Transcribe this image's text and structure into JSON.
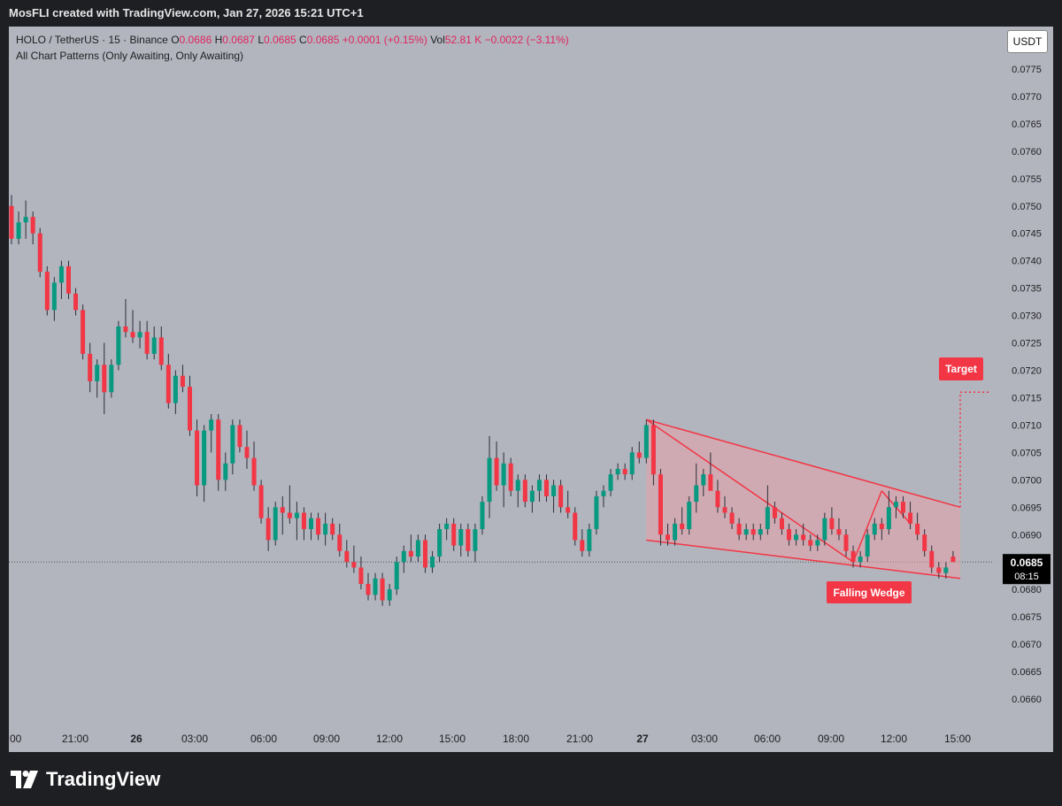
{
  "header": {
    "text": "MosFLI created with TradingView.com, Jan 27, 2026 15:21 UTC+1"
  },
  "legend": {
    "symbol": "HOLO / TetherUS · 15 · Binance",
    "o_label": "O",
    "o": "0.0686",
    "h_label": "H",
    "h": "0.0687",
    "l_label": "L",
    "l": "0.0685",
    "c_label": "C",
    "c": "0.0685",
    "change": "+0.0001 (+0.15%)",
    "vol_label": "Vol",
    "vol": "52.81 K",
    "vol_change": "−0.0022 (−3.11%)",
    "indicator": "All Chart Patterns (Only Awaiting, Only Awaiting)"
  },
  "currency_button": "USDT",
  "price_tag": {
    "value": "0.0685",
    "countdown": "08:15"
  },
  "annotations": {
    "target": "Target",
    "pattern": "Falling Wedge"
  },
  "footer": {
    "brand": "TradingView"
  },
  "colors": {
    "up": "#089981",
    "down": "#f23645",
    "background": "#b2b5be",
    "wedge_line": "#f23645",
    "wedge_fill": "#e8a0a8"
  },
  "chart_data": {
    "type": "candlestick",
    "symbol": "HOLO / TetherUS",
    "interval": "15",
    "exchange": "Binance",
    "y_axis": {
      "ticks": [
        "0.0775",
        "0.0770",
        "0.0765",
        "0.0760",
        "0.0755",
        "0.0750",
        "0.0745",
        "0.0740",
        "0.0735",
        "0.0730",
        "0.0725",
        "0.0720",
        "0.0715",
        "0.0710",
        "0.0705",
        "0.0700",
        "0.0695",
        "0.0690",
        "0.0685",
        "0.0680",
        "0.0675",
        "0.0670",
        "0.0665",
        "0.0660"
      ],
      "range": [
        0.0654,
        0.0782
      ]
    },
    "x_axis": {
      "ticks": [
        ":00",
        "21:00",
        "26",
        "03:00",
        "06:00",
        "09:00",
        "12:00",
        "15:00",
        "18:00",
        "21:00",
        "27",
        "03:00",
        "06:00",
        "09:00",
        "12:00",
        "15:00"
      ],
      "bold": [
        false,
        false,
        true,
        false,
        false,
        false,
        false,
        false,
        false,
        false,
        true,
        false,
        false,
        false,
        false,
        false
      ]
    },
    "candles_ohlc": [
      [
        0.075,
        0.0752,
        0.0743,
        0.0744
      ],
      [
        0.0744,
        0.0749,
        0.0743,
        0.0747
      ],
      [
        0.0747,
        0.0751,
        0.0744,
        0.0748
      ],
      [
        0.0748,
        0.0749,
        0.0743,
        0.0745
      ],
      [
        0.0745,
        0.0746,
        0.0737,
        0.0738
      ],
      [
        0.0738,
        0.0739,
        0.073,
        0.0731
      ],
      [
        0.0731,
        0.0737,
        0.0729,
        0.0736
      ],
      [
        0.0736,
        0.074,
        0.0733,
        0.0739
      ],
      [
        0.0739,
        0.074,
        0.0733,
        0.0734
      ],
      [
        0.0734,
        0.0735,
        0.073,
        0.0731
      ],
      [
        0.0731,
        0.0732,
        0.0722,
        0.0723
      ],
      [
        0.0723,
        0.0725,
        0.0716,
        0.0718
      ],
      [
        0.0718,
        0.0722,
        0.0715,
        0.0721
      ],
      [
        0.0721,
        0.0725,
        0.0712,
        0.0716
      ],
      [
        0.0716,
        0.0722,
        0.0715,
        0.0721
      ],
      [
        0.0721,
        0.0729,
        0.072,
        0.0728
      ],
      [
        0.0728,
        0.0733,
        0.0726,
        0.0727
      ],
      [
        0.0727,
        0.0731,
        0.0725,
        0.0726
      ],
      [
        0.0726,
        0.0729,
        0.0724,
        0.0727
      ],
      [
        0.0727,
        0.0729,
        0.0722,
        0.0723
      ],
      [
        0.0723,
        0.0728,
        0.0722,
        0.0726
      ],
      [
        0.0726,
        0.0728,
        0.072,
        0.0721
      ],
      [
        0.0721,
        0.0723,
        0.0713,
        0.0714
      ],
      [
        0.0714,
        0.072,
        0.0712,
        0.0719
      ],
      [
        0.0719,
        0.0721,
        0.0716,
        0.0717
      ],
      [
        0.0717,
        0.0719,
        0.0708,
        0.0709
      ],
      [
        0.0709,
        0.0711,
        0.0697,
        0.0699
      ],
      [
        0.0699,
        0.071,
        0.0696,
        0.0709
      ],
      [
        0.0709,
        0.0712,
        0.0705,
        0.0711
      ],
      [
        0.0711,
        0.0712,
        0.0698,
        0.07
      ],
      [
        0.07,
        0.0705,
        0.0698,
        0.0703
      ],
      [
        0.0703,
        0.0711,
        0.0701,
        0.071
      ],
      [
        0.071,
        0.0711,
        0.0705,
        0.0706
      ],
      [
        0.0706,
        0.0709,
        0.0702,
        0.0704
      ],
      [
        0.0704,
        0.0707,
        0.0698,
        0.0699
      ],
      [
        0.0699,
        0.07,
        0.0692,
        0.0693
      ],
      [
        0.0693,
        0.0695,
        0.0687,
        0.0689
      ],
      [
        0.0689,
        0.0696,
        0.0688,
        0.0695
      ],
      [
        0.0695,
        0.0697,
        0.069,
        0.0694
      ],
      [
        0.0694,
        0.0699,
        0.0692,
        0.0693
      ],
      [
        0.0693,
        0.0696,
        0.0689,
        0.0694
      ],
      [
        0.0694,
        0.0695,
        0.0689,
        0.0691
      ],
      [
        0.0691,
        0.0694,
        0.0689,
        0.0693
      ],
      [
        0.0693,
        0.0694,
        0.0689,
        0.069
      ],
      [
        0.069,
        0.0694,
        0.0688,
        0.0692
      ],
      [
        0.0692,
        0.0693,
        0.0689,
        0.069
      ],
      [
        0.069,
        0.0692,
        0.0686,
        0.0687
      ],
      [
        0.0687,
        0.0689,
        0.0684,
        0.0685
      ],
      [
        0.0685,
        0.0688,
        0.0683,
        0.0684
      ],
      [
        0.0684,
        0.0686,
        0.068,
        0.0681
      ],
      [
        0.0681,
        0.0683,
        0.0678,
        0.0679
      ],
      [
        0.0679,
        0.0683,
        0.0678,
        0.0682
      ],
      [
        0.0682,
        0.0683,
        0.0677,
        0.0678
      ],
      [
        0.0678,
        0.0681,
        0.0677,
        0.068
      ],
      [
        0.068,
        0.0686,
        0.0679,
        0.0685
      ],
      [
        0.0685,
        0.0688,
        0.0683,
        0.0687
      ],
      [
        0.0687,
        0.069,
        0.0685,
        0.0686
      ],
      [
        0.0686,
        0.069,
        0.0685,
        0.0689
      ],
      [
        0.0689,
        0.069,
        0.0683,
        0.0684
      ],
      [
        0.0684,
        0.0687,
        0.0683,
        0.0686
      ],
      [
        0.0686,
        0.0692,
        0.0685,
        0.0691
      ],
      [
        0.0691,
        0.0693,
        0.0689,
        0.0692
      ],
      [
        0.0692,
        0.0693,
        0.0687,
        0.0688
      ],
      [
        0.0688,
        0.0692,
        0.0686,
        0.0691
      ],
      [
        0.0691,
        0.0692,
        0.0686,
        0.0687
      ],
      [
        0.0687,
        0.0692,
        0.0685,
        0.0691
      ],
      [
        0.0691,
        0.0697,
        0.069,
        0.0696
      ],
      [
        0.0696,
        0.0708,
        0.0693,
        0.0704
      ],
      [
        0.0704,
        0.0707,
        0.0698,
        0.0699
      ],
      [
        0.0699,
        0.0705,
        0.0695,
        0.0703
      ],
      [
        0.0703,
        0.0704,
        0.0697,
        0.0698
      ],
      [
        0.0698,
        0.0701,
        0.0695,
        0.07
      ],
      [
        0.07,
        0.0701,
        0.0695,
        0.0696
      ],
      [
        0.0696,
        0.0699,
        0.0694,
        0.0698
      ],
      [
        0.0698,
        0.0701,
        0.0696,
        0.07
      ],
      [
        0.07,
        0.0701,
        0.0696,
        0.0697
      ],
      [
        0.0697,
        0.07,
        0.0694,
        0.0699
      ],
      [
        0.0699,
        0.07,
        0.0694,
        0.0695
      ],
      [
        0.0695,
        0.0698,
        0.0693,
        0.0694
      ],
      [
        0.0694,
        0.0695,
        0.0688,
        0.0689
      ],
      [
        0.0689,
        0.0691,
        0.0686,
        0.0687
      ],
      [
        0.0687,
        0.0692,
        0.0686,
        0.0691
      ],
      [
        0.0691,
        0.0698,
        0.069,
        0.0697
      ],
      [
        0.0697,
        0.0699,
        0.0695,
        0.0698
      ],
      [
        0.0698,
        0.0702,
        0.0697,
        0.0701
      ],
      [
        0.0701,
        0.0703,
        0.07,
        0.0702
      ],
      [
        0.0702,
        0.0703,
        0.07,
        0.0701
      ],
      [
        0.0701,
        0.0706,
        0.07,
        0.0705
      ],
      [
        0.0705,
        0.0707,
        0.0703,
        0.0704
      ],
      [
        0.0704,
        0.0711,
        0.0703,
        0.071
      ],
      [
        0.071,
        0.0711,
        0.0699,
        0.0701
      ],
      [
        0.0701,
        0.0702,
        0.0688,
        0.069
      ],
      [
        0.069,
        0.0692,
        0.0688,
        0.0689
      ],
      [
        0.0689,
        0.0693,
        0.0688,
        0.0692
      ],
      [
        0.0692,
        0.0695,
        0.069,
        0.0691
      ],
      [
        0.0691,
        0.0697,
        0.069,
        0.0696
      ],
      [
        0.0696,
        0.0703,
        0.0694,
        0.0699
      ],
      [
        0.0699,
        0.0702,
        0.0697,
        0.0701
      ],
      [
        0.0701,
        0.0705,
        0.0699,
        0.0698
      ],
      [
        0.0698,
        0.07,
        0.0694,
        0.0695
      ],
      [
        0.0695,
        0.0697,
        0.0693,
        0.0694
      ],
      [
        0.0694,
        0.0695,
        0.0691,
        0.0692
      ],
      [
        0.0692,
        0.0693,
        0.0689,
        0.069
      ],
      [
        0.069,
        0.0692,
        0.0689,
        0.0691
      ],
      [
        0.0691,
        0.0692,
        0.0689,
        0.069
      ],
      [
        0.069,
        0.0692,
        0.0689,
        0.0691
      ],
      [
        0.0691,
        0.0699,
        0.069,
        0.0695
      ],
      [
        0.0695,
        0.0696,
        0.0692,
        0.0693
      ],
      [
        0.0693,
        0.0694,
        0.069,
        0.0691
      ],
      [
        0.0691,
        0.0692,
        0.0688,
        0.0689
      ],
      [
        0.0689,
        0.0691,
        0.0688,
        0.069
      ],
      [
        0.069,
        0.0692,
        0.0688,
        0.0689
      ],
      [
        0.0689,
        0.069,
        0.0687,
        0.0688
      ],
      [
        0.0688,
        0.069,
        0.0687,
        0.0689
      ],
      [
        0.0689,
        0.0694,
        0.0688,
        0.0693
      ],
      [
        0.0693,
        0.0695,
        0.069,
        0.0691
      ],
      [
        0.0691,
        0.0693,
        0.0689,
        0.069
      ],
      [
        0.069,
        0.0691,
        0.0686,
        0.0687
      ],
      [
        0.0687,
        0.0688,
        0.0684,
        0.0685
      ],
      [
        0.0685,
        0.0687,
        0.0684,
        0.0686
      ],
      [
        0.0686,
        0.0691,
        0.0685,
        0.069
      ],
      [
        0.069,
        0.0693,
        0.0689,
        0.0692
      ],
      [
        0.0692,
        0.0693,
        0.0689,
        0.0691
      ],
      [
        0.0691,
        0.0698,
        0.069,
        0.0695
      ],
      [
        0.0695,
        0.0697,
        0.0693,
        0.0696
      ],
      [
        0.0696,
        0.0697,
        0.0693,
        0.0694
      ],
      [
        0.0694,
        0.0696,
        0.0691,
        0.0692
      ],
      [
        0.0692,
        0.0694,
        0.0689,
        0.069
      ],
      [
        0.069,
        0.0691,
        0.0686,
        0.0687
      ],
      [
        0.0687,
        0.0688,
        0.0683,
        0.0684
      ],
      [
        0.0684,
        0.0685,
        0.0682,
        0.0683
      ],
      [
        0.0683,
        0.0685,
        0.0682,
        0.0684
      ],
      [
        0.0686,
        0.0687,
        0.0685,
        0.0685
      ]
    ],
    "falling_wedge": {
      "upper_line": [
        [
          89,
          0.0711
        ],
        [
          133,
          0.0695
        ]
      ],
      "lower_line": [
        [
          89,
          0.0689
        ],
        [
          133,
          0.0682
        ]
      ],
      "inner_lines": [
        [
          [
            89,
            0.0711
          ],
          [
            118,
            0.0685
          ]
        ],
        [
          [
            118,
            0.0685
          ],
          [
            122,
            0.0698
          ]
        ],
        [
          [
            122,
            0.0698
          ],
          [
            126,
            0.0692
          ]
        ]
      ],
      "target": 0.0716
    }
  }
}
